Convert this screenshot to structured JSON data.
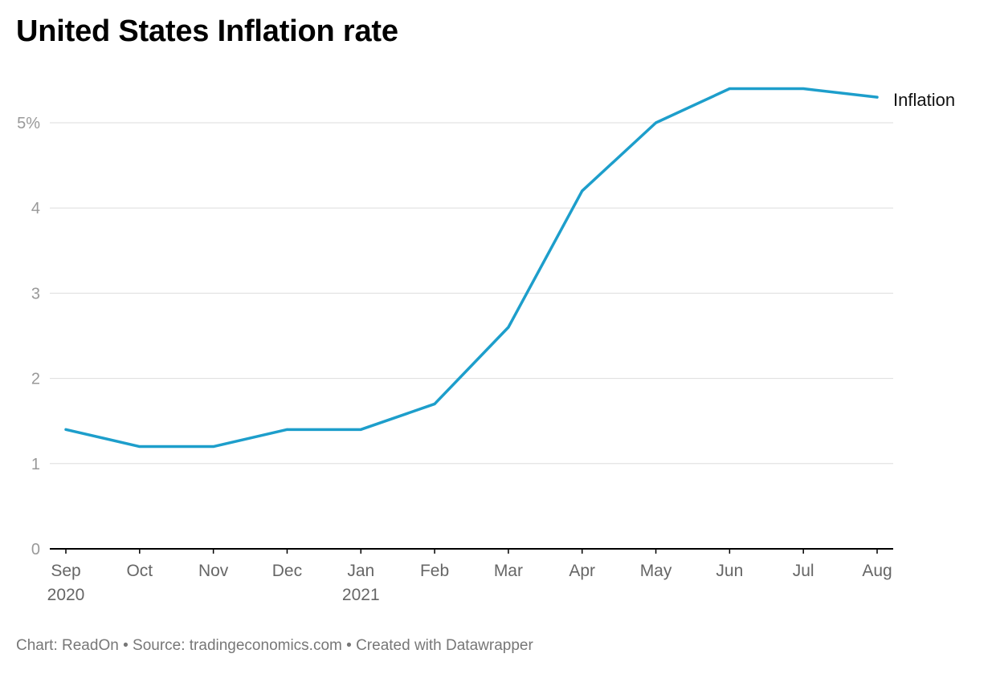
{
  "title": "United States Inflation rate",
  "footer": {
    "chart_by": "Chart: ReadOn",
    "source": "Source: tradingeconomics.com",
    "created_with": "Created with Datawrapper",
    "separator": "•"
  },
  "colors": {
    "line": "#1d9ecb",
    "grid": "#dddddd",
    "axis": "#000000",
    "tick_text": "#999999",
    "x_tick_text": "#666666",
    "footer_text": "#777777"
  },
  "chart_data": {
    "type": "line",
    "title": "United States Inflation rate",
    "xlabel": "",
    "ylabel": "",
    "categories": [
      "Sep",
      "Oct",
      "Nov",
      "Dec",
      "Jan",
      "Feb",
      "Mar",
      "Apr",
      "May",
      "Jun",
      "Jul",
      "Aug"
    ],
    "year_labels": [
      "2020",
      "",
      "",
      "",
      "2021",
      "",
      "",
      "",
      "",
      "",
      "",
      ""
    ],
    "series": [
      {
        "name": "Inflation",
        "values": [
          1.4,
          1.2,
          1.2,
          1.4,
          1.4,
          1.7,
          2.6,
          4.2,
          5.0,
          5.4,
          5.4,
          5.3
        ]
      }
    ],
    "y_ticks": [
      0,
      1,
      2,
      3,
      4,
      5
    ],
    "y_tick_labels": [
      "0",
      "1",
      "2",
      "3",
      "4",
      "5%"
    ],
    "ylim": [
      0,
      5.4
    ],
    "grid": true,
    "legend": "direct label at line end"
  }
}
